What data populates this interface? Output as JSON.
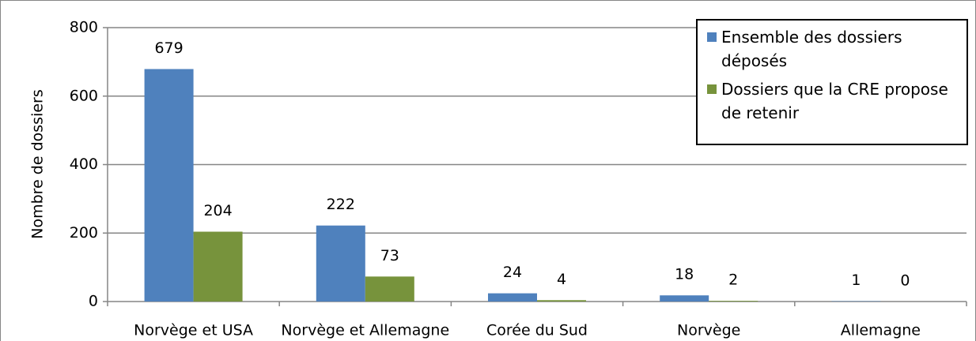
{
  "chart_data": {
    "type": "bar",
    "ylabel": "Nombre de dossiers",
    "categories": [
      "Norvège et USA",
      "Norvège et Allemagne",
      "Corée du Sud",
      "Norvège",
      "Allemagne"
    ],
    "series": [
      {
        "name": "Ensemble des dossiers déposés",
        "color": "#4f81bd",
        "values": [
          679,
          222,
          24,
          18,
          1
        ]
      },
      {
        "name": "Dossiers que la CRE propose de retenir",
        "color": "#77933c",
        "values": [
          204,
          73,
          4,
          2,
          0
        ]
      }
    ],
    "ylim": [
      0,
      800
    ],
    "yticks": [
      0,
      200,
      400,
      600,
      800
    ],
    "grid": true,
    "legend": "upper right"
  }
}
